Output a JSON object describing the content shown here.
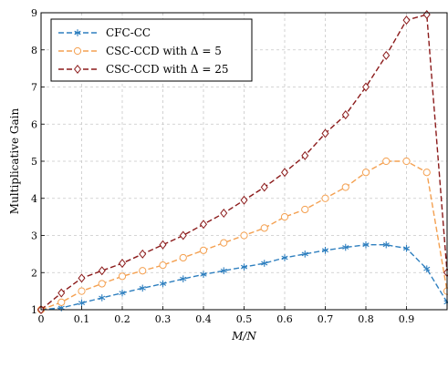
{
  "chart_data": {
    "type": "line",
    "xlabel": "M/N",
    "ylabel": "Multiplicative Gain",
    "xlim": [
      0,
      1
    ],
    "ylim": [
      1,
      9
    ],
    "xticks": [
      "0",
      "0.1",
      "0.2",
      "0.3",
      "0.4",
      "0.5",
      "0.6",
      "0.7",
      "0.8",
      "0.9"
    ],
    "xtick_values": [
      0,
      0.1,
      0.2,
      0.3,
      0.4,
      0.5,
      0.6,
      0.7,
      0.8,
      0.9
    ],
    "yticks": [
      "1",
      "2",
      "3",
      "4",
      "5",
      "6",
      "7",
      "8",
      "9"
    ],
    "ytick_values": [
      1,
      2,
      3,
      4,
      5,
      6,
      7,
      8,
      9
    ],
    "grid": true,
    "legend_position": "top-left",
    "series": [
      {
        "name": "CFC-CC",
        "color": "#2e7fbf",
        "marker": "asterisk",
        "x": [
          0,
          0.05,
          0.1,
          0.15,
          0.2,
          0.25,
          0.3,
          0.35,
          0.4,
          0.45,
          0.5,
          0.55,
          0.6,
          0.65,
          0.7,
          0.75,
          0.8,
          0.85,
          0.9,
          0.95,
          1.0
        ],
        "y": [
          1.0,
          1.05,
          1.18,
          1.32,
          1.45,
          1.58,
          1.7,
          1.83,
          1.95,
          2.05,
          2.15,
          2.25,
          2.4,
          2.5,
          2.6,
          2.68,
          2.75,
          2.75,
          2.65,
          2.1,
          1.2
        ]
      },
      {
        "name": "CSC-CCD with Δ = 5",
        "color": "#f4a050",
        "marker": "circle",
        "x": [
          0,
          0.05,
          0.1,
          0.15,
          0.2,
          0.25,
          0.3,
          0.35,
          0.4,
          0.45,
          0.5,
          0.55,
          0.6,
          0.65,
          0.7,
          0.75,
          0.8,
          0.85,
          0.9,
          0.95,
          1.0
        ],
        "y": [
          1.0,
          1.2,
          1.5,
          1.7,
          1.9,
          2.05,
          2.2,
          2.4,
          2.6,
          2.8,
          3.0,
          3.2,
          3.5,
          3.7,
          4.0,
          4.3,
          4.7,
          5.0,
          5.0,
          4.7,
          1.5
        ]
      },
      {
        "name": "CSC-CCD with Δ = 25",
        "color": "#8b1a1a",
        "marker": "diamond",
        "x": [
          0,
          0.05,
          0.1,
          0.15,
          0.2,
          0.25,
          0.3,
          0.35,
          0.4,
          0.45,
          0.5,
          0.55,
          0.6,
          0.65,
          0.7,
          0.75,
          0.8,
          0.85,
          0.9,
          0.95,
          1.0
        ],
        "y": [
          1.0,
          1.45,
          1.85,
          2.05,
          2.25,
          2.5,
          2.75,
          3.0,
          3.3,
          3.6,
          3.95,
          4.3,
          4.7,
          5.15,
          5.75,
          6.25,
          7.0,
          7.85,
          8.8,
          8.95,
          2.0
        ]
      }
    ]
  }
}
